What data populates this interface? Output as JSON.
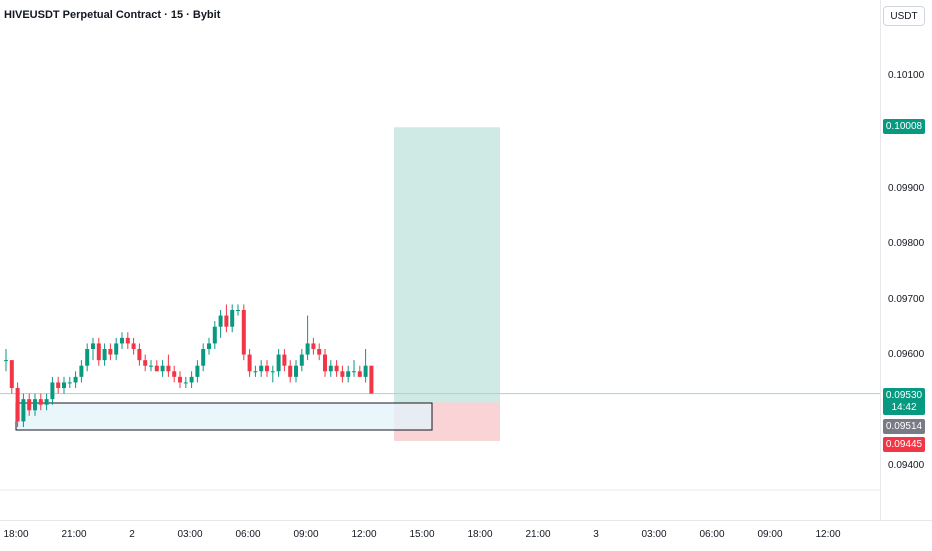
{
  "header": {
    "title": "HIVEUSDT Perpetual Contract · 15 · Bybit"
  },
  "price_axis": {
    "currency": "USDT",
    "ticks": [
      "0.10100",
      "0.09900",
      "0.09800",
      "0.09700",
      "0.09600",
      "0.09400"
    ],
    "target_tag": "0.10008",
    "last_price_tag": "0.09530",
    "countdown": "14:42",
    "entry_tag": "0.09514",
    "stop_tag": "0.09445"
  },
  "time_axis": {
    "ticks": [
      "18:00",
      "21:00",
      "2",
      "03:00",
      "06:00",
      "09:00",
      "12:00",
      "15:00",
      "18:00",
      "21:00",
      "3",
      "03:00",
      "06:00",
      "09:00",
      "12:00"
    ]
  },
  "colors": {
    "up": "#089981",
    "down": "#f23645",
    "target_zone": "#cfeae4",
    "stop_zone": "#f9d3d6",
    "demand_zone": "#e3f4fb",
    "last_price_line": "#9bd9cf",
    "entry_tag": "#787b86"
  },
  "chart_data": {
    "type": "candlestick",
    "interval": "15",
    "candles_ohlc": [
      [
        0.0959,
        0.0961,
        0.0957,
        0.0959
      ],
      [
        0.0959,
        0.0959,
        0.0953,
        0.0954
      ],
      [
        0.0954,
        0.0955,
        0.0947,
        0.0948
      ],
      [
        0.0948,
        0.0953,
        0.0947,
        0.0952
      ],
      [
        0.0952,
        0.0953,
        0.0949,
        0.095
      ],
      [
        0.095,
        0.0953,
        0.0949,
        0.0952
      ],
      [
        0.0952,
        0.0953,
        0.095,
        0.0951
      ],
      [
        0.0951,
        0.0953,
        0.095,
        0.0952
      ],
      [
        0.0952,
        0.0956,
        0.0951,
        0.0955
      ],
      [
        0.0955,
        0.0956,
        0.0953,
        0.0954
      ],
      [
        0.0954,
        0.0956,
        0.0953,
        0.0955
      ],
      [
        0.0955,
        0.0956,
        0.0954,
        0.0955
      ],
      [
        0.0955,
        0.0957,
        0.0954,
        0.0956
      ],
      [
        0.0956,
        0.0959,
        0.0955,
        0.0958
      ],
      [
        0.0958,
        0.0962,
        0.0957,
        0.0961
      ],
      [
        0.0961,
        0.0963,
        0.0959,
        0.0962
      ],
      [
        0.0962,
        0.0963,
        0.0958,
        0.0959
      ],
      [
        0.0959,
        0.0962,
        0.0958,
        0.0961
      ],
      [
        0.0961,
        0.0962,
        0.0959,
        0.096
      ],
      [
        0.096,
        0.0963,
        0.0959,
        0.0962
      ],
      [
        0.0962,
        0.0964,
        0.0961,
        0.0963
      ],
      [
        0.0963,
        0.0964,
        0.0961,
        0.0962
      ],
      [
        0.0962,
        0.0963,
        0.096,
        0.0961
      ],
      [
        0.0961,
        0.0962,
        0.0958,
        0.0959
      ],
      [
        0.0959,
        0.096,
        0.0957,
        0.0958
      ],
      [
        0.0958,
        0.0959,
        0.0957,
        0.0958
      ],
      [
        0.0958,
        0.0959,
        0.0957,
        0.0957
      ],
      [
        0.0957,
        0.0959,
        0.0956,
        0.0958
      ],
      [
        0.0958,
        0.096,
        0.0956,
        0.0957
      ],
      [
        0.0957,
        0.0958,
        0.0955,
        0.0956
      ],
      [
        0.0956,
        0.0957,
        0.0954,
        0.0955
      ],
      [
        0.0955,
        0.0956,
        0.0954,
        0.0955
      ],
      [
        0.0955,
        0.0957,
        0.0954,
        0.0956
      ],
      [
        0.0956,
        0.0959,
        0.0955,
        0.0958
      ],
      [
        0.0958,
        0.0962,
        0.0957,
        0.0961
      ],
      [
        0.0961,
        0.0963,
        0.096,
        0.0962
      ],
      [
        0.0962,
        0.0966,
        0.0961,
        0.0965
      ],
      [
        0.0965,
        0.0968,
        0.0963,
        0.0967
      ],
      [
        0.0967,
        0.0969,
        0.0964,
        0.0965
      ],
      [
        0.0965,
        0.0969,
        0.0964,
        0.0968
      ],
      [
        0.0968,
        0.0969,
        0.0967,
        0.0968
      ],
      [
        0.0968,
        0.0969,
        0.0959,
        0.096
      ],
      [
        0.096,
        0.0961,
        0.0956,
        0.0957
      ],
      [
        0.0957,
        0.0958,
        0.0956,
        0.0957
      ],
      [
        0.0957,
        0.0959,
        0.0956,
        0.0958
      ],
      [
        0.0958,
        0.0959,
        0.0956,
        0.0957
      ],
      [
        0.0957,
        0.0958,
        0.0955,
        0.0957
      ],
      [
        0.0957,
        0.0961,
        0.0956,
        0.096
      ],
      [
        0.096,
        0.0961,
        0.0957,
        0.0958
      ],
      [
        0.0958,
        0.0959,
        0.0955,
        0.0956
      ],
      [
        0.0956,
        0.0959,
        0.0955,
        0.0958
      ],
      [
        0.0958,
        0.0961,
        0.0957,
        0.096
      ],
      [
        0.096,
        0.0967,
        0.0959,
        0.0962
      ],
      [
        0.0962,
        0.0963,
        0.096,
        0.0961
      ],
      [
        0.0961,
        0.0962,
        0.0959,
        0.096
      ],
      [
        0.096,
        0.0961,
        0.0956,
        0.0957
      ],
      [
        0.0957,
        0.0959,
        0.0956,
        0.0958
      ],
      [
        0.0958,
        0.0959,
        0.0956,
        0.0957
      ],
      [
        0.0957,
        0.0958,
        0.0955,
        0.0956
      ],
      [
        0.0956,
        0.0958,
        0.0955,
        0.0957
      ],
      [
        0.0957,
        0.0959,
        0.0956,
        0.0957
      ],
      [
        0.0957,
        0.0958,
        0.0956,
        0.0956
      ],
      [
        0.0956,
        0.0961,
        0.0955,
        0.0958
      ],
      [
        0.0958,
        0.0958,
        0.0953,
        0.0953
      ]
    ],
    "position": {
      "target": 0.10008,
      "entry": 0.09514,
      "stop": 0.09445
    },
    "last_price": 0.0953,
    "y_range": [
      0.0938,
      0.1021
    ]
  }
}
